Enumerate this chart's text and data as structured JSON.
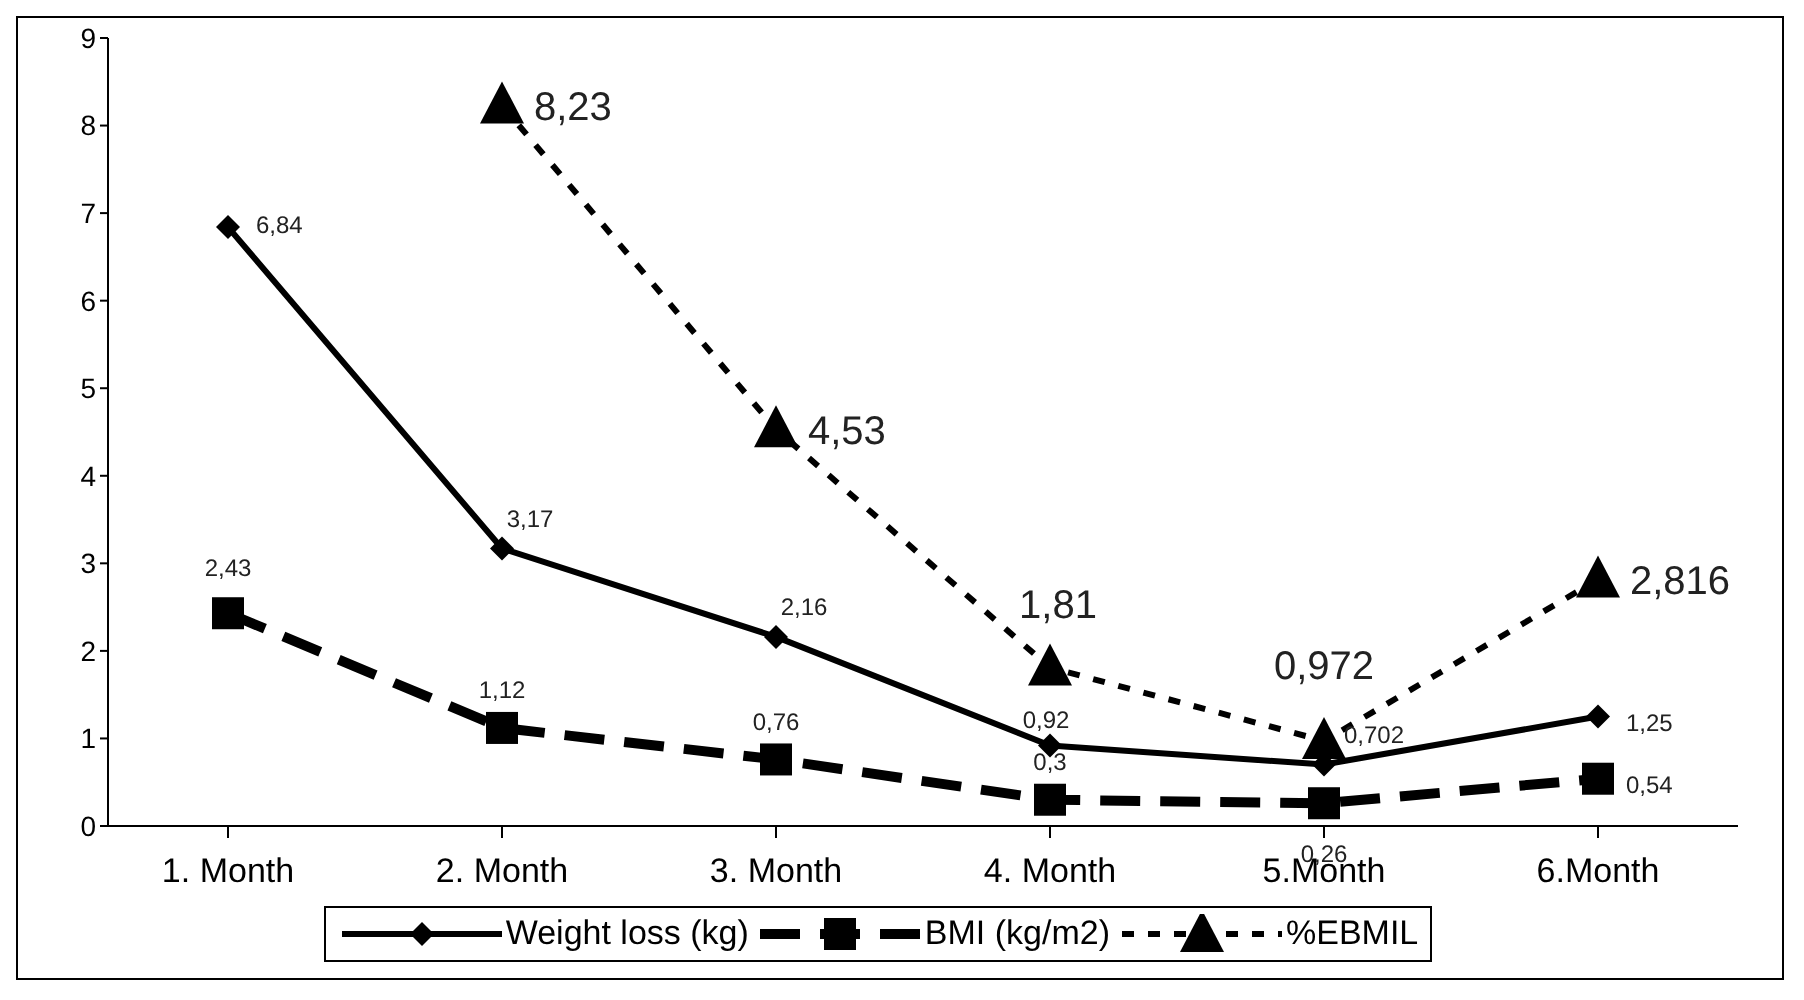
{
  "chart_data": {
    "type": "line",
    "categories": [
      "1. Month",
      "2. Month",
      "3. Month",
      "4. Month",
      "5.Month",
      "6.Month"
    ],
    "series": [
      {
        "name": "Weight loss (kg)",
        "color": "#000000",
        "marker": "diamond",
        "line_style": "solid",
        "values": [
          6.84,
          3.17,
          2.16,
          0.92,
          0.702,
          1.25
        ],
        "value_labels": [
          "6,84",
          "3,17",
          "2,16",
          "0,92",
          "0,702",
          "1,25"
        ]
      },
      {
        "name": "BMI (kg/m2)",
        "color": "#000000",
        "marker": "square",
        "line_style": "dashed",
        "values": [
          2.43,
          1.12,
          0.76,
          0.3,
          0.26,
          0.54
        ],
        "value_labels": [
          "2,43",
          "1,12",
          "0,76",
          "0,3",
          "0,26",
          "0,54"
        ]
      },
      {
        "name": "%EBMIL",
        "color": "#000000",
        "marker": "triangle",
        "line_style": "dotted",
        "values": [
          null,
          8.23,
          4.53,
          1.81,
          0.972,
          2.816
        ],
        "value_labels": [
          null,
          "8,23",
          "4,53",
          "1,81",
          "0,972",
          "2,816"
        ]
      }
    ],
    "ylim": [
      0,
      9
    ],
    "yticks": [
      0,
      1,
      2,
      3,
      4,
      5,
      6,
      7,
      8,
      9
    ],
    "grid": false,
    "legend": "bottom"
  }
}
